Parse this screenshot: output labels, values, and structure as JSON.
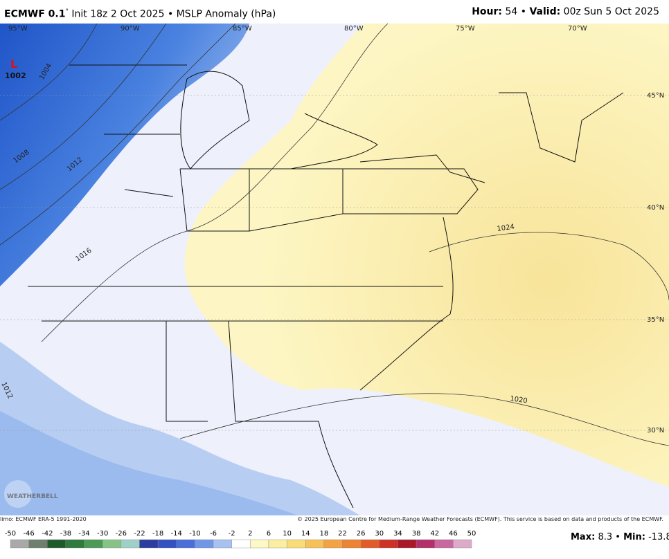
{
  "header": {
    "model": "ECMWF 0.1",
    "degree": "°",
    "init": "Init 18z 2 Oct 2025",
    "separator": "•",
    "product": "MSLP Anomaly (hPa)",
    "hour_label": "Hour:",
    "hour": "54",
    "separator2": "•",
    "valid_label": "Valid:",
    "valid": "00z Sun 5 Oct 2025"
  },
  "map": {
    "longitude_labels": [
      "95°W",
      "90°W",
      "85°W",
      "80°W",
      "75°W",
      "70°W"
    ],
    "latitude_labels": [
      "45°N",
      "40°N",
      "35°N",
      "30°N"
    ],
    "isobar_labels": [
      "1004",
      "1008",
      "1012",
      "1016",
      "1020",
      "1024",
      "1012"
    ],
    "low": {
      "symbol": "L",
      "pressure": "1002"
    },
    "logo": "WEATHERBELL"
  },
  "footer": {
    "climatology": "limo: ECMWF ERA-5 1991-2020",
    "copyright": "© 2025 European Centre for Medium-Range Weather Forecasts (ECMWF). This service is based on data and products of the ECMWF."
  },
  "colorbar": {
    "ticks": [
      -50,
      -46,
      -42,
      -38,
      -34,
      -30,
      -26,
      -22,
      -18,
      -14,
      -10,
      -6,
      -2,
      2,
      6,
      10,
      14,
      18,
      22,
      26,
      30,
      34,
      38,
      42,
      46,
      50
    ],
    "colors": [
      "#a9a9a9",
      "#6e7f6e",
      "#1f5a2c",
      "#2f7a3c",
      "#4c9a55",
      "#86c485",
      "#9fd0c8",
      "#2c3d9e",
      "#3550c0",
      "#4a6fd8",
      "#7197e6",
      "#a7c1f0",
      "#ffffff",
      "#fdf9c6",
      "#fbeea0",
      "#f8dc78",
      "#f5c25a",
      "#f2a444",
      "#ec8434",
      "#e25c2a",
      "#cc3326",
      "#a81a2a",
      "#b4306a",
      "#c8689e",
      "#ddaaca"
    ],
    "max_label": "Max:",
    "max": 8.3,
    "separator": "•",
    "min_label": "Min:",
    "min": -13.8
  }
}
